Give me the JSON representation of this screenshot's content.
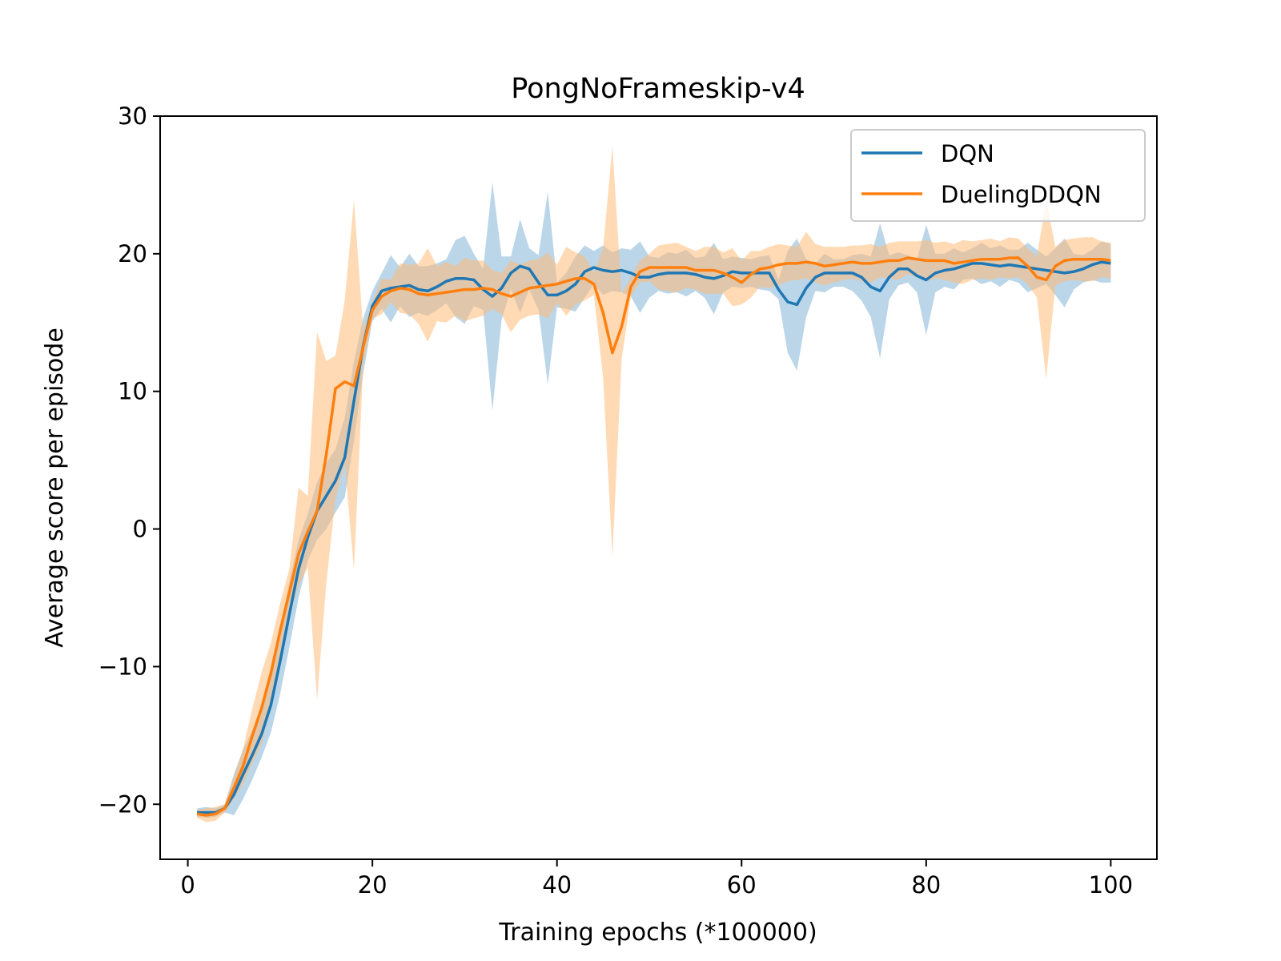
{
  "chart_data": {
    "type": "line",
    "title": "PongNoFrameskip-v4",
    "xlabel": "Training epochs (*100000)",
    "ylabel": "Average score per episode",
    "xlim": [
      -3,
      105
    ],
    "ylim": [
      -24,
      30
    ],
    "xticks": [
      0,
      20,
      40,
      60,
      80,
      100
    ],
    "yticks": [
      -20,
      -10,
      0,
      10,
      20,
      30
    ],
    "xtick_labels": [
      "0",
      "20",
      "40",
      "60",
      "80",
      "100"
    ],
    "ytick_labels": [
      "−20",
      "−10",
      "0",
      "10",
      "20",
      "30"
    ],
    "grid": false,
    "legend_position": "top-right",
    "x": [
      1,
      2,
      3,
      4,
      5,
      6,
      7,
      8,
      9,
      10,
      11,
      12,
      13,
      14,
      15,
      16,
      17,
      18,
      19,
      20,
      21,
      22,
      23,
      24,
      25,
      26,
      27,
      28,
      29,
      30,
      31,
      32,
      33,
      34,
      35,
      36,
      37,
      38,
      39,
      40,
      41,
      42,
      43,
      44,
      45,
      46,
      47,
      48,
      49,
      50,
      51,
      52,
      53,
      54,
      55,
      56,
      57,
      58,
      59,
      60,
      61,
      62,
      63,
      64,
      65,
      66,
      67,
      68,
      69,
      70,
      71,
      72,
      73,
      74,
      75,
      76,
      77,
      78,
      79,
      80,
      81,
      82,
      83,
      84,
      85,
      86,
      87,
      88,
      89,
      90,
      91,
      92,
      93,
      94,
      95,
      96,
      97,
      98,
      99,
      100
    ],
    "series": [
      {
        "name": "DQN",
        "color": "#1f77b4",
        "band_color": "#1f77b4",
        "values": [
          -20.6,
          -20.6,
          -20.6,
          -20.3,
          -19.3,
          -17.8,
          -16.4,
          -14.9,
          -12.8,
          -9.6,
          -6.2,
          -2.9,
          -0.6,
          1.3,
          2.4,
          3.5,
          5.2,
          9.3,
          13.3,
          16.2,
          17.3,
          17.5,
          17.6,
          17.7,
          17.4,
          17.3,
          17.6,
          18.0,
          18.2,
          18.2,
          18.1,
          17.4,
          16.9,
          17.5,
          18.6,
          19.1,
          18.9,
          17.9,
          17.0,
          17.0,
          17.3,
          17.8,
          18.7,
          19.0,
          18.8,
          18.7,
          18.8,
          18.6,
          18.3,
          18.3,
          18.5,
          18.6,
          18.6,
          18.6,
          18.5,
          18.3,
          18.2,
          18.4,
          18.7,
          18.6,
          18.6,
          18.6,
          18.6,
          17.4,
          16.5,
          16.3,
          17.5,
          18.3,
          18.6,
          18.6,
          18.6,
          18.6,
          18.3,
          17.6,
          17.3,
          18.3,
          18.9,
          18.9,
          18.4,
          18.1,
          18.6,
          18.8,
          18.9,
          19.1,
          19.3,
          19.3,
          19.2,
          19.1,
          19.2,
          19.1,
          19.0,
          18.9,
          18.8,
          18.7,
          18.6,
          18.7,
          18.9,
          19.2,
          19.4,
          19.3
        ],
        "lower": [
          -20.9,
          -21.0,
          -20.9,
          -20.6,
          -20.8,
          -19.6,
          -18.2,
          -16.6,
          -14.8,
          -12.0,
          -8.6,
          -5.0,
          -2.3,
          -0.8,
          0.0,
          1.2,
          2.3,
          6.4,
          11.3,
          15.1,
          16.0,
          15.0,
          16.2,
          15.4,
          15.7,
          15.5,
          15.9,
          16.4,
          15.4,
          14.9,
          16.2,
          15.9,
          8.6,
          15.2,
          17.4,
          15.7,
          17.4,
          15.9,
          10.5,
          16.1,
          16.0,
          15.8,
          16.8,
          17.8,
          17.0,
          17.3,
          17.2,
          16.9,
          15.7,
          16.8,
          17.3,
          17.1,
          17.2,
          16.9,
          17.3,
          16.8,
          15.6,
          17.2,
          17.6,
          17.5,
          17.6,
          17.4,
          17.3,
          16.7,
          12.8,
          11.5,
          15.4,
          17.3,
          17.2,
          17.6,
          17.6,
          17.3,
          16.6,
          15.4,
          12.4,
          16.7,
          17.7,
          17.9,
          17.2,
          14.1,
          17.2,
          17.6,
          17.4,
          18.1,
          18.2,
          17.8,
          18.0,
          17.6,
          18.1,
          17.9,
          17.2,
          17.5,
          17.8,
          17.0,
          16.1,
          17.4,
          17.9,
          18.1,
          17.9,
          17.9
        ],
        "upper": [
          -20.3,
          -20.2,
          -20.3,
          -20.0,
          -17.8,
          -16.0,
          -14.6,
          -13.2,
          -10.8,
          -7.2,
          -3.8,
          -0.8,
          1.1,
          3.4,
          4.8,
          5.8,
          8.1,
          12.2,
          15.3,
          17.3,
          18.6,
          19.9,
          19.0,
          20.0,
          19.1,
          19.1,
          19.3,
          19.6,
          21.0,
          21.3,
          20.0,
          18.9,
          25.2,
          19.8,
          19.8,
          22.5,
          20.4,
          19.9,
          24.5,
          17.9,
          18.6,
          19.8,
          20.6,
          20.2,
          20.6,
          20.1,
          20.4,
          20.3,
          20.9,
          19.8,
          19.7,
          20.1,
          20.0,
          20.3,
          19.7,
          19.8,
          20.8,
          19.6,
          19.8,
          19.7,
          19.6,
          19.8,
          19.9,
          18.1,
          20.2,
          21.1,
          19.6,
          19.3,
          20.0,
          19.6,
          19.6,
          19.9,
          20.0,
          19.8,
          22.2,
          19.9,
          20.1,
          19.9,
          19.6,
          22.1,
          20.0,
          20.0,
          20.4,
          20.1,
          20.4,
          20.8,
          20.4,
          20.6,
          20.3,
          20.3,
          20.8,
          20.3,
          19.8,
          20.4,
          21.1,
          20.0,
          19.9,
          20.3,
          20.9,
          20.7
        ]
      },
      {
        "name": "DuelingDDQN",
        "color": "#ff7f0e",
        "band_color": "#ffbb78",
        "values": [
          -20.7,
          -20.8,
          -20.7,
          -20.3,
          -18.8,
          -17.2,
          -15.0,
          -13.0,
          -10.5,
          -7.4,
          -4.6,
          -1.8,
          -0.2,
          1.3,
          5.4,
          10.2,
          10.7,
          10.4,
          13.2,
          15.9,
          16.9,
          17.3,
          17.5,
          17.4,
          17.1,
          17.0,
          17.1,
          17.2,
          17.3,
          17.4,
          17.4,
          17.5,
          17.4,
          17.1,
          16.9,
          17.2,
          17.5,
          17.6,
          17.7,
          17.8,
          18.0,
          18.2,
          18.2,
          17.8,
          15.7,
          12.8,
          14.7,
          17.6,
          18.7,
          19.0,
          19.0,
          19.0,
          19.0,
          19.0,
          18.8,
          18.8,
          18.8,
          18.6,
          18.3,
          17.9,
          18.5,
          18.9,
          19.0,
          19.2,
          19.3,
          19.3,
          19.4,
          19.3,
          19.1,
          19.2,
          19.3,
          19.4,
          19.3,
          19.3,
          19.4,
          19.5,
          19.5,
          19.7,
          19.6,
          19.5,
          19.5,
          19.5,
          19.3,
          19.4,
          19.5,
          19.6,
          19.6,
          19.6,
          19.7,
          19.7,
          19.1,
          18.3,
          18.1,
          19.1,
          19.5,
          19.6,
          19.6,
          19.6,
          19.6,
          19.5
        ],
        "lower": [
          -21.0,
          -21.3,
          -21.2,
          -20.6,
          -19.6,
          -18.5,
          -17.0,
          -15.6,
          -12.7,
          -9.4,
          -6.3,
          -4.1,
          -2.8,
          -12.4,
          -4.0,
          2.2,
          4.8,
          -3.0,
          11.9,
          15.3,
          15.6,
          16.5,
          15.7,
          15.6,
          14.9,
          13.6,
          15.1,
          15.0,
          15.5,
          15.1,
          15.3,
          15.5,
          16.0,
          15.6,
          14.3,
          15.2,
          15.5,
          15.6,
          15.3,
          16.4,
          15.5,
          16.3,
          16.6,
          17.0,
          11.0,
          -2.0,
          12.3,
          16.9,
          17.9,
          18.0,
          17.4,
          17.3,
          17.2,
          17.5,
          17.4,
          17.1,
          17.1,
          17.1,
          16.2,
          16.3,
          16.8,
          17.6,
          17.5,
          17.7,
          18.0,
          18.1,
          18.2,
          17.9,
          17.7,
          17.9,
          18.1,
          18.2,
          18.0,
          17.9,
          18.3,
          18.2,
          18.1,
          18.5,
          18.3,
          18.0,
          18.2,
          18.1,
          17.9,
          17.8,
          18.1,
          18.2,
          18.1,
          18.3,
          18.2,
          18.3,
          17.8,
          16.8,
          10.9,
          17.7,
          18.0,
          18.1,
          18.0,
          18.0,
          18.3,
          18.2
        ],
        "upper": [
          -20.4,
          -20.3,
          -20.2,
          -20.0,
          -18.0,
          -15.9,
          -13.0,
          -10.4,
          -8.3,
          -5.4,
          -2.9,
          3.0,
          2.4,
          14.3,
          12.2,
          12.6,
          16.6,
          23.9,
          14.5,
          16.5,
          18.2,
          18.1,
          19.3,
          19.2,
          19.3,
          20.4,
          19.1,
          19.4,
          19.1,
          19.7,
          19.5,
          19.5,
          18.8,
          18.6,
          19.5,
          19.2,
          19.5,
          19.6,
          20.1,
          19.2,
          20.5,
          20.1,
          19.8,
          18.6,
          20.4,
          27.8,
          17.1,
          18.3,
          19.5,
          20.0,
          20.6,
          20.7,
          20.8,
          20.5,
          20.2,
          20.5,
          20.5,
          20.1,
          20.4,
          19.5,
          20.2,
          20.2,
          20.5,
          20.7,
          20.6,
          20.5,
          21.6,
          20.7,
          20.5,
          20.5,
          20.5,
          20.6,
          20.6,
          20.7,
          20.5,
          20.8,
          20.9,
          20.9,
          20.9,
          21.0,
          20.8,
          20.9,
          20.7,
          21.0,
          20.9,
          21.0,
          21.1,
          20.9,
          21.2,
          21.1,
          20.4,
          19.8,
          23.9,
          20.5,
          21.0,
          21.1,
          21.2,
          21.2,
          20.9,
          20.8
        ]
      }
    ]
  }
}
